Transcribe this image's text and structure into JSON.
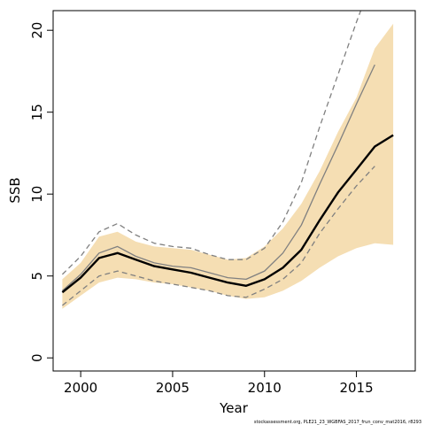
{
  "chart_data": {
    "type": "line",
    "xlabel": "Year",
    "ylabel": "SSB",
    "xlim": [
      1998.5,
      2018.2
    ],
    "ylim": [
      -0.8,
      21.2
    ],
    "x_ticks": [
      2000,
      2005,
      2010,
      2015
    ],
    "y_ticks": [
      0,
      5,
      10,
      15,
      20
    ],
    "grid": false,
    "footnote": "stockassessment.org, PLE21_23_WGBFAS_2017_frun_conv_mat2016, r8293",
    "band": {
      "color": "#f5deb3",
      "x": [
        1999,
        2000,
        2001,
        2002,
        2003,
        2004,
        2005,
        2006,
        2007,
        2008,
        2009,
        2010,
        2011,
        2012,
        2013,
        2014,
        2015,
        2016,
        2017
      ],
      "lower": [
        3.0,
        3.8,
        4.6,
        4.9,
        4.8,
        4.6,
        4.5,
        4.3,
        4.1,
        3.8,
        3.6,
        3.7,
        4.1,
        4.7,
        5.5,
        6.2,
        6.7,
        7.0,
        6.9
      ],
      "upper": [
        4.8,
        5.8,
        7.4,
        7.7,
        7.1,
        6.8,
        6.7,
        6.6,
        6.3,
        6.0,
        6.1,
        6.8,
        7.9,
        9.4,
        11.4,
        13.8,
        15.9,
        18.9,
        20.4
      ]
    },
    "series": [
      {
        "color": "#000000",
        "style": "solid-thick",
        "x": [
          1999,
          2000,
          2001,
          2002,
          2003,
          2004,
          2005,
          2006,
          2007,
          2008,
          2009,
          2010,
          2011,
          2012,
          2013,
          2014,
          2015,
          2016,
          2017
        ],
        "y": [
          4.0,
          4.9,
          6.1,
          6.4,
          6.0,
          5.6,
          5.4,
          5.2,
          4.9,
          4.6,
          4.4,
          4.8,
          5.5,
          6.6,
          8.4,
          10.1,
          11.5,
          12.9,
          13.6
        ]
      },
      {
        "color": "#808080",
        "style": "solid",
        "x": [
          1999,
          2000,
          2001,
          2002,
          2003,
          2004,
          2005,
          2006,
          2007,
          2008,
          2009,
          2010,
          2011,
          2012,
          2013,
          2014,
          2015,
          2016
        ],
        "y": [
          4.1,
          5.1,
          6.4,
          6.8,
          6.2,
          5.8,
          5.6,
          5.5,
          5.2,
          4.9,
          4.8,
          5.3,
          6.4,
          8.1,
          10.6,
          13.0,
          15.5,
          17.9
        ]
      },
      {
        "color": "#808080",
        "style": "dashed",
        "x": [
          1999,
          2000,
          2001,
          2002,
          2003,
          2004,
          2005,
          2006,
          2007,
          2008,
          2009,
          2010,
          2011,
          2012,
          2013,
          2014,
          2015,
          2016
        ],
        "y": [
          5.1,
          6.2,
          7.7,
          8.2,
          7.5,
          7.0,
          6.8,
          6.7,
          6.3,
          6.0,
          6.0,
          6.7,
          8.3,
          10.7,
          14.1,
          17.3,
          20.5,
          23.5
        ]
      },
      {
        "color": "#808080",
        "style": "dashed",
        "x": [
          1999,
          2000,
          2001,
          2002,
          2003,
          2004,
          2005,
          2006,
          2007,
          2008,
          2009,
          2010,
          2011,
          2012,
          2013,
          2014,
          2015,
          2016
        ],
        "y": [
          3.2,
          4.1,
          5.0,
          5.3,
          5.0,
          4.7,
          4.5,
          4.3,
          4.1,
          3.8,
          3.7,
          4.2,
          4.8,
          5.8,
          7.6,
          9.1,
          10.5,
          11.7
        ]
      }
    ]
  }
}
